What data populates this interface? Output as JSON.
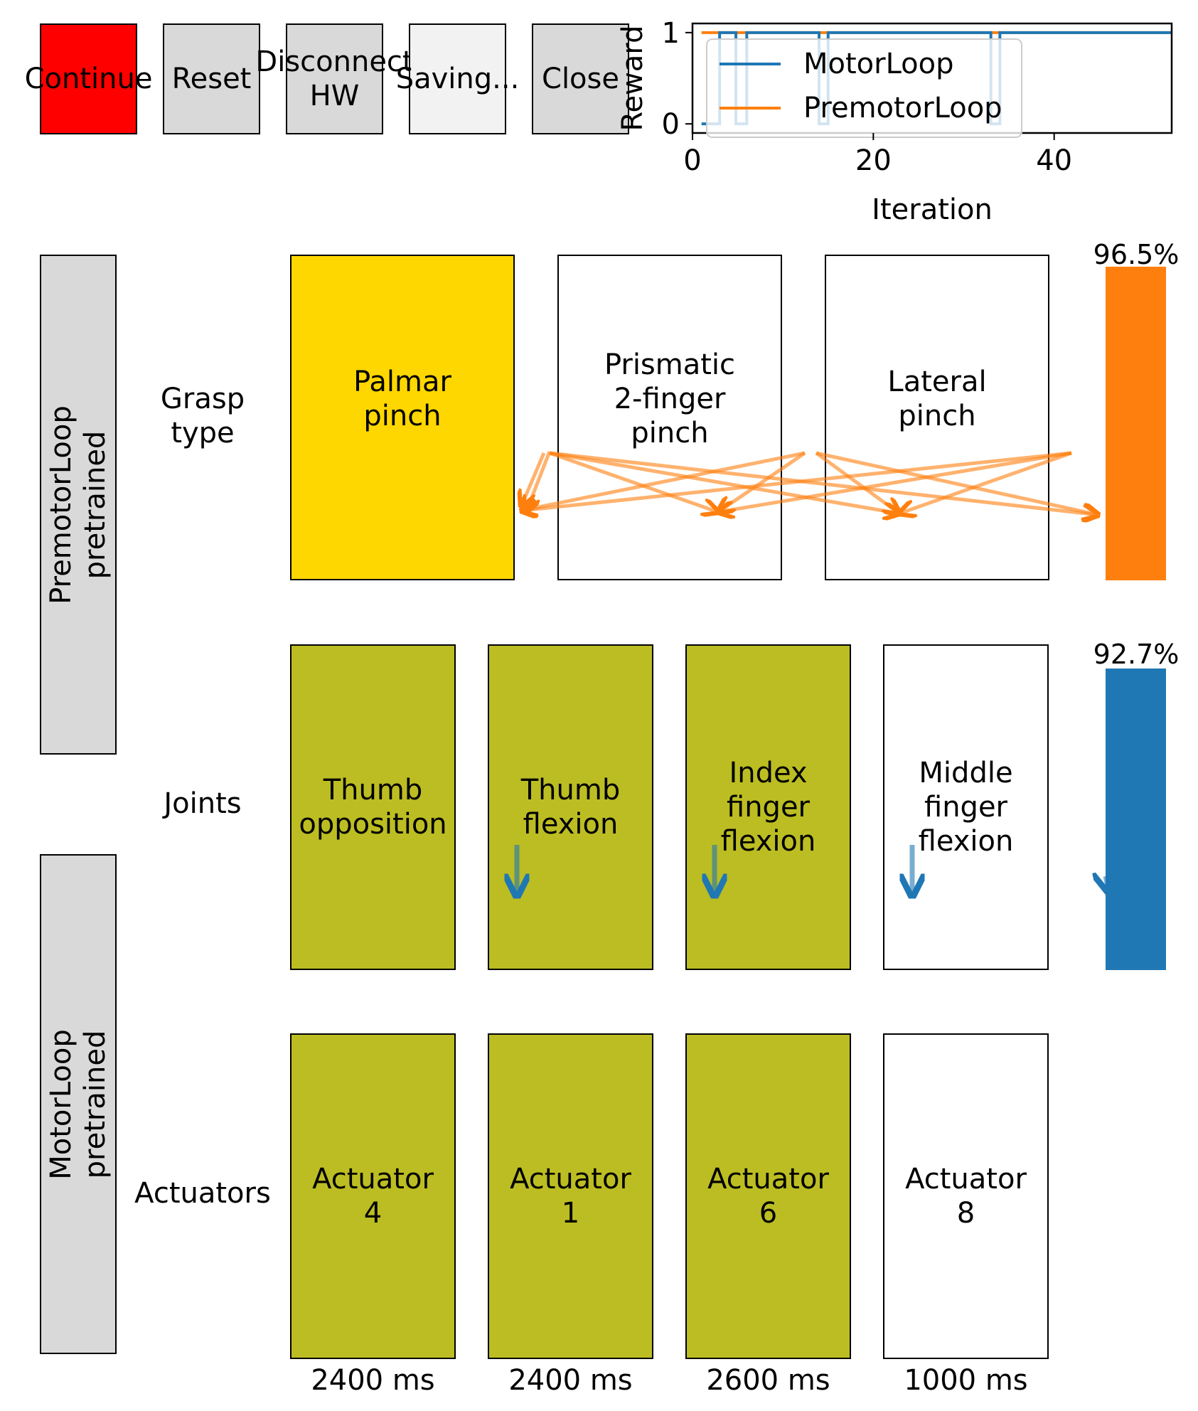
{
  "toolbar": {
    "buttons": [
      {
        "label": "Continue",
        "color": "#ff0000"
      },
      {
        "label": "Reset",
        "color": "#d9d9d9"
      },
      {
        "label": "Disconnect\nHW",
        "color": "#d9d9d9"
      },
      {
        "label": "Saving...",
        "color": "#f2f2f2"
      },
      {
        "label": "Close",
        "color": "#d9d9d9"
      }
    ]
  },
  "chart_data": {
    "type": "line",
    "xlabel": "Iteration",
    "ylabel": "Reward",
    "xlim": [
      0,
      53
    ],
    "ylim": [
      -0.1,
      1.1
    ],
    "xticks": [
      "0",
      "20",
      "40"
    ],
    "yticks": [
      "0",
      "1"
    ],
    "legend": "top-left",
    "series": [
      {
        "name": "MotorLoop",
        "color": "#1f77b4",
        "x": [
          1,
          1,
          3,
          3,
          3.3,
          3.3,
          4.8,
          4.8,
          5.2,
          5.2,
          6,
          6,
          14,
          14,
          15,
          15,
          33,
          33,
          34,
          34,
          53
        ],
        "y": [
          0,
          0,
          0,
          1,
          1,
          1,
          1,
          0,
          0,
          0,
          0,
          1,
          1,
          0,
          0,
          1,
          1,
          0,
          0,
          1,
          1
        ]
      },
      {
        "name": "PremotorLoop",
        "color": "#ff7f0e",
        "x": [
          1,
          53
        ],
        "y": [
          1,
          1
        ]
      }
    ]
  },
  "sidebar": {
    "premotor_label": "PremotorLoop\npretrained",
    "motor_label": "MotorLoop\npretrained"
  },
  "rows": {
    "grasp_label": "Grasp\ntype",
    "joints_label": "Joints",
    "actuators_label": "Actuators"
  },
  "grasp": [
    {
      "label": "Palmar\npinch",
      "color": "#ffd700"
    },
    {
      "label": "Prismatic\n2-finger\npinch",
      "color": "#ffffff"
    },
    {
      "label": "Lateral\npinch",
      "color": "#ffffff"
    }
  ],
  "joints": [
    {
      "label": "Thumb\nopposition",
      "color": "#bcbd22"
    },
    {
      "label": "Thumb\nflexion",
      "color": "#bcbd22"
    },
    {
      "label": "Index\nfinger\nflexion",
      "color": "#bcbd22"
    },
    {
      "label": "Middle\nfinger\nflexion",
      "color": "#ffffff"
    }
  ],
  "actuators": [
    {
      "label": "Actuator\n4",
      "color": "#bcbd22",
      "time": "2400 ms"
    },
    {
      "label": "Actuator\n1",
      "color": "#bcbd22",
      "time": "2400 ms"
    },
    {
      "label": "Actuator\n6",
      "color": "#bcbd22",
      "time": "2600 ms"
    },
    {
      "label": "Actuator\n8",
      "color": "#ffffff",
      "time": "1000 ms"
    }
  ],
  "confidence": {
    "premotor": {
      "value_percent": 96.5,
      "label": "96.5%",
      "color": "#ff7f0e"
    },
    "motor": {
      "value_percent": 92.7,
      "label": "92.7%",
      "color": "#1f77b4"
    }
  },
  "arrows": {
    "orange": "#ff7f0e",
    "blue": "#1f77b4"
  }
}
